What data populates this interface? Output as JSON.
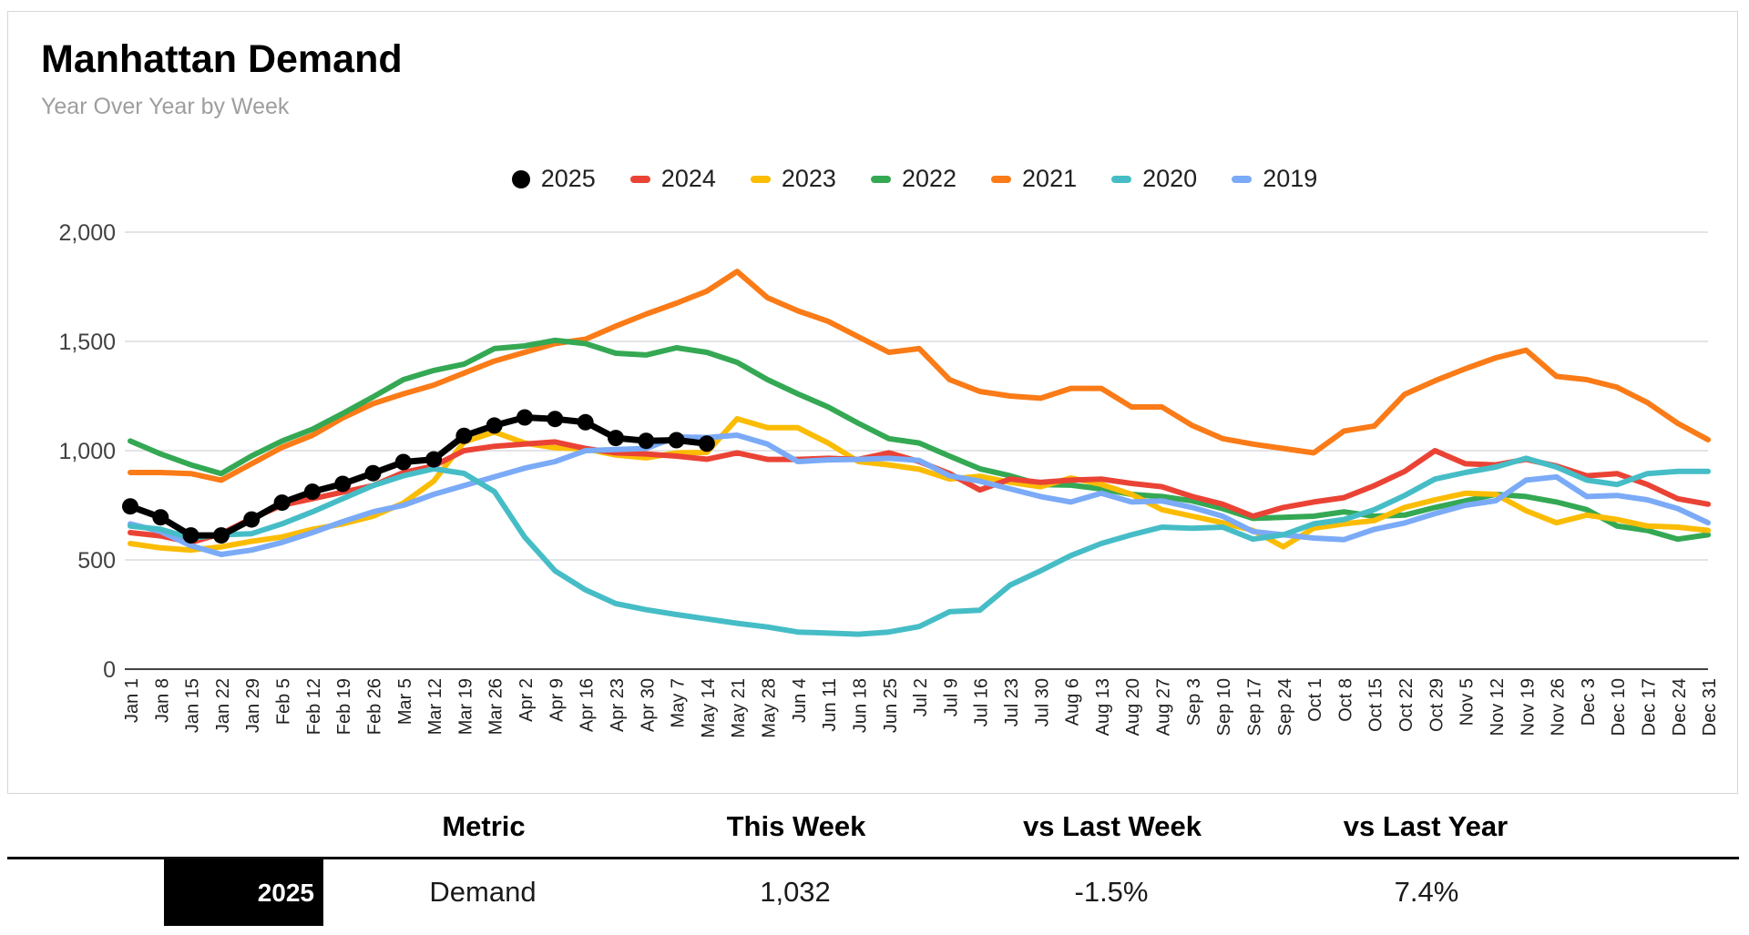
{
  "chart_data": {
    "type": "line",
    "title": "Manhattan Demand",
    "subtitle": "Year Over Year by Week",
    "legend_position": "top",
    "grid": true,
    "ylim": [
      0,
      2000
    ],
    "ytick_values": [
      2000,
      1500,
      1000,
      500,
      0
    ],
    "ytick_labels": [
      "2,000",
      "1,500",
      "1,000",
      "500",
      "0"
    ],
    "categories": [
      "Jan 1",
      "Jan 8",
      "Jan 15",
      "Jan 22",
      "Jan 29",
      "Feb 5",
      "Feb 12",
      "Feb 19",
      "Feb 26",
      "Mar 5",
      "Mar 12",
      "Mar 19",
      "Mar 26",
      "Apr 2",
      "Apr 9",
      "Apr 16",
      "Apr 23",
      "Apr 30",
      "May 7",
      "May 14",
      "May 21",
      "May 28",
      "Jun 4",
      "Jun 11",
      "Jun 18",
      "Jun 25",
      "Jul 2",
      "Jul 9",
      "Jul 16",
      "Jul 23",
      "Jul 30",
      "Aug 6",
      "Aug 13",
      "Aug 20",
      "Aug 27",
      "Sep 3",
      "Sep 10",
      "Sep 17",
      "Sep 24",
      "Oct 1",
      "Oct 8",
      "Oct 15",
      "Oct 22",
      "Oct 29",
      "Nov 5",
      "Nov 12",
      "Nov 19",
      "Nov 26",
      "Dec 3",
      "Dec 10",
      "Dec 17",
      "Dec 24",
      "Dec 31"
    ],
    "series": [
      {
        "name": "2025",
        "color": "#000000",
        "marker": "circle",
        "values": [
          745,
          695,
          612,
          612,
          685,
          762,
          812,
          848,
          897,
          948,
          960,
          1068,
          1115,
          1152,
          1145,
          1130,
          1058,
          1045,
          1048,
          1032,
          null,
          null,
          null,
          null,
          null,
          null,
          null,
          null,
          null,
          null,
          null,
          null,
          null,
          null,
          null,
          null,
          null,
          null,
          null,
          null,
          null,
          null,
          null,
          null,
          null,
          null,
          null,
          null,
          null,
          null,
          null,
          null,
          null
        ]
      },
      {
        "name": "2024",
        "color": "#EA4335",
        "marker": "dash",
        "values": [
          625,
          610,
          580,
          620,
          690,
          750,
          780,
          810,
          840,
          900,
          930,
          1000,
          1020,
          1030,
          1040,
          1010,
          990,
          985,
          975,
          961,
          990,
          960,
          960,
          965,
          960,
          990,
          950,
          895,
          820,
          870,
          855,
          865,
          870,
          850,
          835,
          790,
          755,
          700,
          740,
          765,
          785,
          840,
          905,
          1000,
          940,
          935,
          960,
          930,
          885,
          895,
          845,
          780,
          755
        ]
      },
      {
        "name": "2023",
        "color": "#FBBC04",
        "marker": "dash",
        "values": [
          575,
          555,
          545,
          560,
          585,
          605,
          640,
          665,
          700,
          760,
          860,
          1040,
          1085,
          1035,
          1013,
          1008,
          980,
          967,
          990,
          992,
          1146,
          1105,
          1105,
          1035,
          950,
          935,
          915,
          870,
          883,
          855,
          835,
          875,
          846,
          800,
          730,
          700,
          670,
          635,
          560,
          645,
          665,
          680,
          740,
          775,
          805,
          800,
          725,
          670,
          705,
          685,
          655,
          650,
          635
        ]
      },
      {
        "name": "2022",
        "color": "#34A853",
        "marker": "dash",
        "values": [
          1044,
          985,
          935,
          895,
          976,
          1044,
          1098,
          1170,
          1246,
          1325,
          1367,
          1396,
          1467,
          1479,
          1505,
          1490,
          1446,
          1438,
          1471,
          1450,
          1404,
          1325,
          1260,
          1200,
          1125,
          1055,
          1035,
          975,
          917,
          885,
          845,
          842,
          825,
          800,
          790,
          770,
          735,
          690,
          695,
          700,
          720,
          700,
          705,
          740,
          770,
          800,
          790,
          765,
          730,
          655,
          635,
          595,
          615
        ]
      },
      {
        "name": "2021",
        "color": "#FA7B17",
        "marker": "dash",
        "values": [
          900,
          900,
          895,
          865,
          940,
          1015,
          1070,
          1150,
          1215,
          1260,
          1300,
          1355,
          1410,
          1450,
          1490,
          1510,
          1570,
          1625,
          1675,
          1730,
          1820,
          1700,
          1640,
          1592,
          1521,
          1450,
          1467,
          1325,
          1271,
          1250,
          1240,
          1285,
          1285,
          1200,
          1200,
          1115,
          1055,
          1030,
          1010,
          990,
          1090,
          1113,
          1258,
          1320,
          1375,
          1425,
          1460,
          1340,
          1325,
          1290,
          1220,
          1125,
          1050
        ]
      },
      {
        "name": "2020",
        "color": "#46BDC6",
        "marker": "dash",
        "values": [
          655,
          640,
          600,
          615,
          620,
          665,
          720,
          780,
          840,
          885,
          917,
          896,
          813,
          604,
          450,
          363,
          300,
          272,
          250,
          230,
          210,
          193,
          170,
          165,
          160,
          170,
          195,
          263,
          270,
          385,
          450,
          520,
          575,
          615,
          650,
          645,
          650,
          595,
          615,
          665,
          685,
          730,
          795,
          870,
          900,
          925,
          965,
          925,
          865,
          845,
          895,
          905,
          905
        ]
      },
      {
        "name": "2019",
        "color": "#7BAAF7",
        "marker": "dash",
        "values": [
          665,
          630,
          565,
          525,
          545,
          580,
          625,
          675,
          720,
          750,
          800,
          840,
          880,
          920,
          950,
          1000,
          1005,
          1010,
          1063,
          1060,
          1071,
          1030,
          950,
          958,
          960,
          965,
          955,
          885,
          860,
          825,
          790,
          765,
          805,
          765,
          770,
          740,
          700,
          630,
          615,
          600,
          593,
          640,
          669,
          712,
          750,
          771,
          865,
          880,
          790,
          795,
          775,
          735,
          670
        ]
      }
    ]
  },
  "table": {
    "headers": [
      "Metric",
      "This Week",
      "vs Last Week",
      "vs Last Year"
    ],
    "row": {
      "year": "2025",
      "metric": "Demand",
      "this_week": "1,032",
      "vs_last_week": "-1.5%",
      "vs_last_year": "7.4%"
    }
  }
}
